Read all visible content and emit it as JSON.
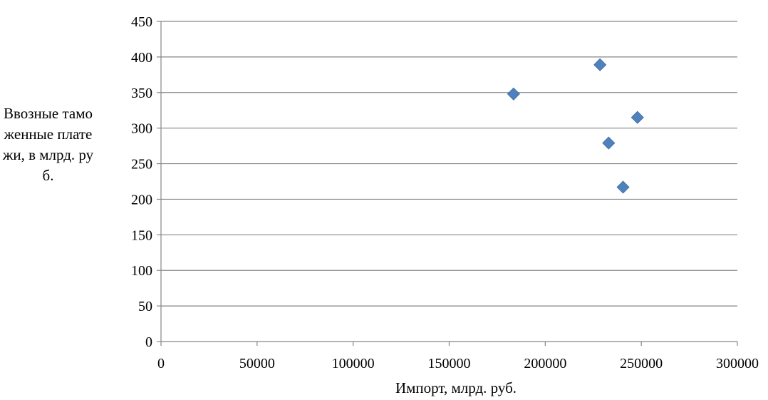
{
  "chart_data": {
    "type": "scatter",
    "title": "",
    "xlabel": "Импорт, млрд. руб.",
    "ylabel": "Ввозные таможенные платежи, в млрд. руб.",
    "xlim": [
      0,
      300000
    ],
    "ylim": [
      0,
      450
    ],
    "xticks": [
      0,
      50000,
      100000,
      150000,
      200000,
      250000,
      300000
    ],
    "yticks": [
      0,
      50,
      100,
      150,
      200,
      250,
      300,
      350,
      400,
      450
    ],
    "grid": "horizontal",
    "legend": "none",
    "marker": "diamond",
    "color": "#4F81BD",
    "points": [
      {
        "x": 183500,
        "y": 348
      },
      {
        "x": 228500,
        "y": 389
      },
      {
        "x": 233000,
        "y": 279
      },
      {
        "x": 240500,
        "y": 217
      },
      {
        "x": 248000,
        "y": 315
      }
    ]
  }
}
